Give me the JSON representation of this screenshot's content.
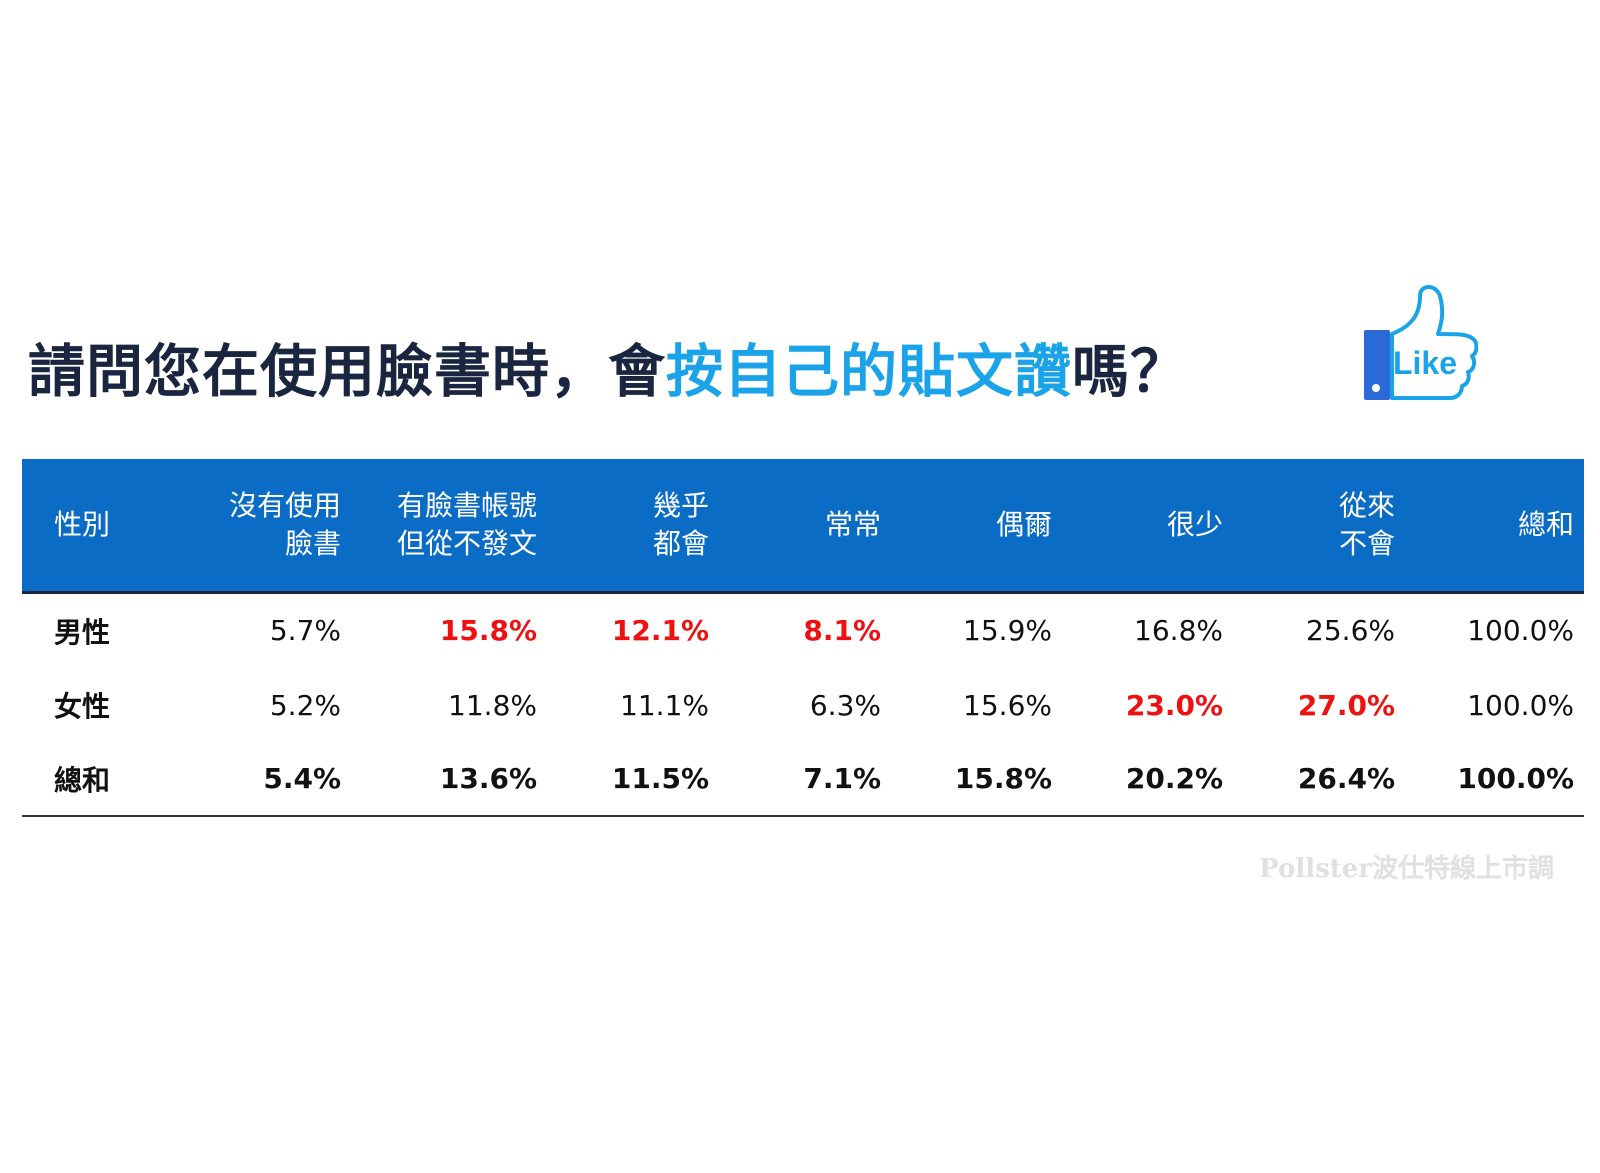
{
  "title": {
    "part1": "請問您在使用臉書時，會",
    "highlight": "按自己的貼文讚",
    "part2": "嗎？"
  },
  "like_icon": {
    "name": "thumbs-up-like-icon",
    "label": "Like",
    "color": "#1aa3e8"
  },
  "colors": {
    "header_bg": "#0a6cc4",
    "highlight_title": "#1aa3e8",
    "highlight_value": "#ee1111"
  },
  "chart_data": {
    "type": "table",
    "columns": [
      [
        "性別"
      ],
      [
        "沒有使用",
        "臉書"
      ],
      [
        "有臉書帳號",
        "但從不發文"
      ],
      [
        "幾乎",
        "都會"
      ],
      [
        "常常"
      ],
      [
        "偶爾"
      ],
      [
        "很少"
      ],
      [
        "從來",
        "不會"
      ],
      [
        "總和"
      ]
    ],
    "rows": [
      {
        "label": "男性",
        "values": [
          "5.7%",
          "15.8%",
          "12.1%",
          "8.1%",
          "15.9%",
          "16.8%",
          "25.6%",
          "100.0%"
        ],
        "highlight": [
          false,
          true,
          true,
          true,
          false,
          false,
          false,
          false
        ]
      },
      {
        "label": "女性",
        "values": [
          "5.2%",
          "11.8%",
          "11.1%",
          "6.3%",
          "15.6%",
          "23.0%",
          "27.0%",
          "100.0%"
        ],
        "highlight": [
          false,
          false,
          false,
          false,
          false,
          true,
          true,
          false
        ]
      },
      {
        "label": "總和",
        "values": [
          "5.4%",
          "13.6%",
          "11.5%",
          "7.1%",
          "15.8%",
          "20.2%",
          "26.4%",
          "100.0%"
        ],
        "highlight": [
          false,
          false,
          false,
          false,
          false,
          false,
          false,
          false
        ]
      }
    ]
  },
  "source": "Pollster波仕特線上市調"
}
